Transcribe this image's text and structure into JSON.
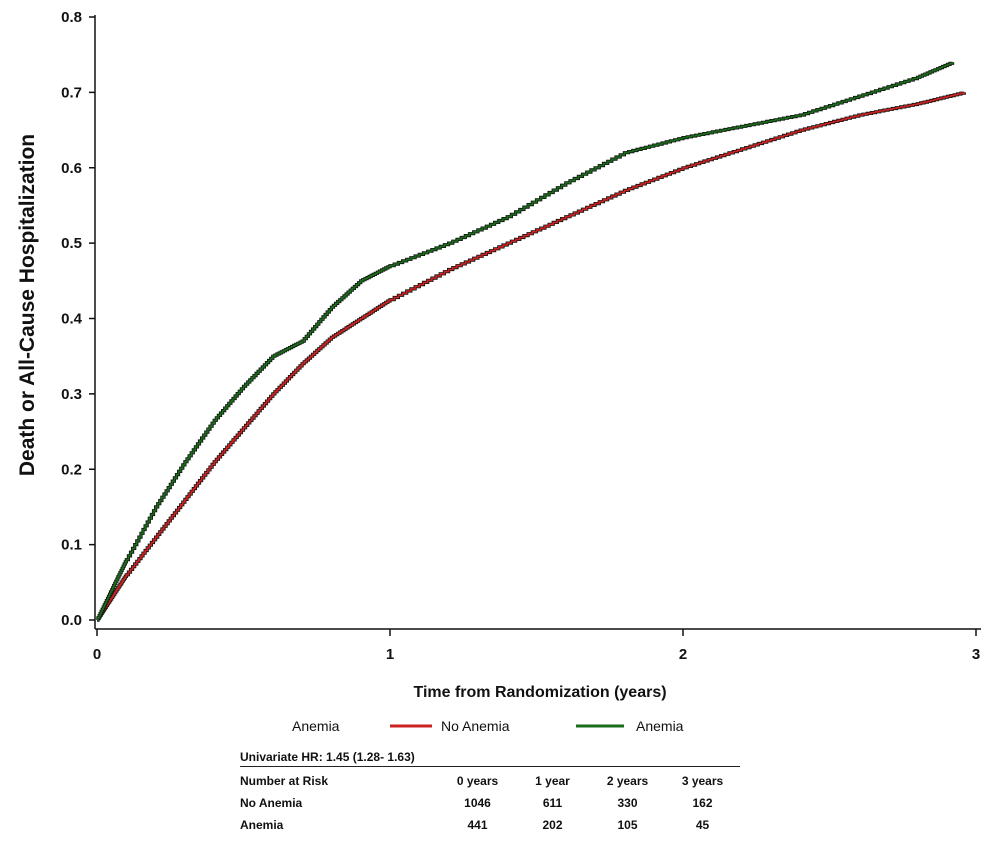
{
  "chart_data": {
    "type": "line",
    "xlabel": "Time from Randomization (years)",
    "ylabel": "Death or All-Cause Hospitalization",
    "xlim": [
      0,
      3
    ],
    "ylim": [
      0,
      0.8
    ],
    "x_ticks": [
      "0",
      "1",
      "2",
      "3"
    ],
    "y_ticks": [
      "0.0",
      "0.1",
      "0.2",
      "0.3",
      "0.4",
      "0.5",
      "0.6",
      "0.7",
      "0.8"
    ],
    "grid": false,
    "legend": {
      "title": "Anemia",
      "placement": "bottom",
      "entries": [
        {
          "name": "No Anemia",
          "color": "#cc2222"
        },
        {
          "name": "Anemia",
          "color": "#1a6b1a"
        }
      ]
    },
    "series": [
      {
        "name": "No Anemia",
        "color": "#cc2222",
        "x": [
          0,
          0.05,
          0.1,
          0.2,
          0.3,
          0.4,
          0.5,
          0.6,
          0.7,
          0.8,
          0.9,
          1.0,
          1.2,
          1.4,
          1.6,
          1.8,
          2.0,
          2.2,
          2.4,
          2.6,
          2.8,
          2.96
        ],
        "y": [
          0,
          0.03,
          0.06,
          0.11,
          0.16,
          0.21,
          0.255,
          0.3,
          0.34,
          0.375,
          0.4,
          0.425,
          0.465,
          0.5,
          0.535,
          0.57,
          0.6,
          0.625,
          0.65,
          0.67,
          0.685,
          0.7
        ]
      },
      {
        "name": "Anemia",
        "color": "#1a6b1a",
        "x": [
          0,
          0.05,
          0.1,
          0.2,
          0.3,
          0.4,
          0.5,
          0.6,
          0.7,
          0.8,
          0.9,
          1.0,
          1.2,
          1.4,
          1.6,
          1.8,
          2.0,
          2.2,
          2.4,
          2.6,
          2.8,
          2.92
        ],
        "y": [
          0,
          0.04,
          0.08,
          0.15,
          0.21,
          0.265,
          0.31,
          0.35,
          0.37,
          0.415,
          0.45,
          0.47,
          0.5,
          0.535,
          0.58,
          0.62,
          0.64,
          0.655,
          0.67,
          0.695,
          0.72,
          0.74
        ]
      }
    ]
  },
  "risk_table": {
    "hr_text": "Univariate HR: 1.45 (1.28- 1.63)",
    "header": [
      "Number at Risk",
      "0 years",
      "1 year",
      "2 years",
      "3 years"
    ],
    "rows": [
      {
        "label": "No Anemia",
        "values": [
          "1046",
          "611",
          "330",
          "162"
        ]
      },
      {
        "label": "Anemia",
        "values": [
          "441",
          "202",
          "105",
          "45"
        ]
      }
    ]
  }
}
